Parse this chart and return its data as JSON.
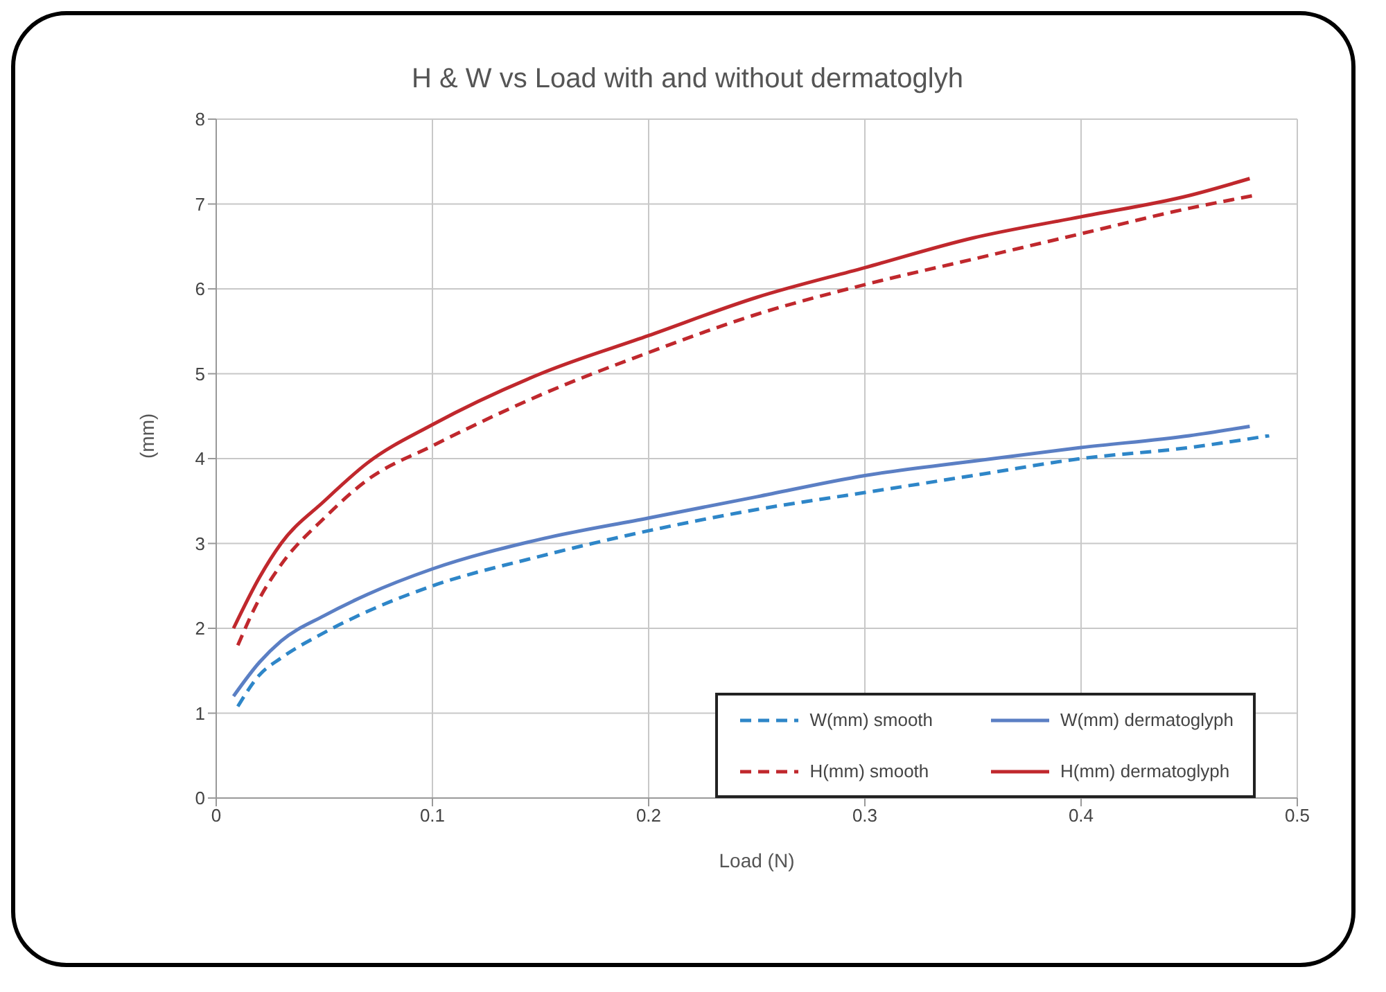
{
  "chart_data": {
    "type": "line",
    "title": "H & W vs Load with and without dermatoglyh",
    "xlabel": "Load (N)",
    "ylabel": "(mm)",
    "xlim": [
      0,
      0.5
    ],
    "xticks": [
      0,
      0.1,
      0.2,
      0.3,
      0.4,
      0.5
    ],
    "ylim": [
      0,
      8
    ],
    "yticks": [
      0,
      1,
      2,
      3,
      4,
      5,
      6,
      7,
      8
    ],
    "grid": true,
    "legend": "bottom right",
    "marker": "none",
    "series": [
      {
        "name": "W(mm) smooth",
        "color": "#2e86c8",
        "line_style": "dashed",
        "x": [
          0.01,
          0.02,
          0.03,
          0.05,
          0.07,
          0.1,
          0.15,
          0.2,
          0.25,
          0.3,
          0.35,
          0.4,
          0.45,
          0.487
        ],
        "values": [
          1.08,
          1.45,
          1.65,
          1.95,
          2.2,
          2.5,
          2.85,
          3.15,
          3.4,
          3.6,
          3.8,
          4.0,
          4.13,
          4.27
        ]
      },
      {
        "name": "W(mm) dermatoglyph",
        "color": "#5b7fc4",
        "line_style": "solid",
        "x": [
          0.008,
          0.02,
          0.03,
          0.05,
          0.07,
          0.1,
          0.15,
          0.2,
          0.25,
          0.3,
          0.35,
          0.4,
          0.45,
          0.478
        ],
        "values": [
          1.2,
          1.6,
          1.85,
          2.15,
          2.4,
          2.7,
          3.05,
          3.3,
          3.55,
          3.8,
          3.97,
          4.13,
          4.27,
          4.38
        ]
      },
      {
        "name": "H(mm) smooth",
        "color": "#c0282d",
        "line_style": "dashed",
        "x": [
          0.01,
          0.02,
          0.03,
          0.05,
          0.07,
          0.1,
          0.15,
          0.2,
          0.25,
          0.3,
          0.35,
          0.4,
          0.45,
          0.48
        ],
        "values": [
          1.8,
          2.35,
          2.75,
          3.3,
          3.75,
          4.15,
          4.75,
          5.25,
          5.7,
          6.05,
          6.35,
          6.65,
          6.95,
          7.1
        ]
      },
      {
        "name": "H(mm) dermatoglyph",
        "color": "#c0282d",
        "line_style": "solid",
        "x": [
          0.008,
          0.02,
          0.03,
          0.05,
          0.07,
          0.1,
          0.15,
          0.2,
          0.25,
          0.3,
          0.35,
          0.4,
          0.45,
          0.478
        ],
        "values": [
          2.0,
          2.6,
          3.0,
          3.5,
          3.95,
          4.4,
          5.0,
          5.45,
          5.9,
          6.25,
          6.6,
          6.85,
          7.1,
          7.3
        ]
      }
    ]
  }
}
